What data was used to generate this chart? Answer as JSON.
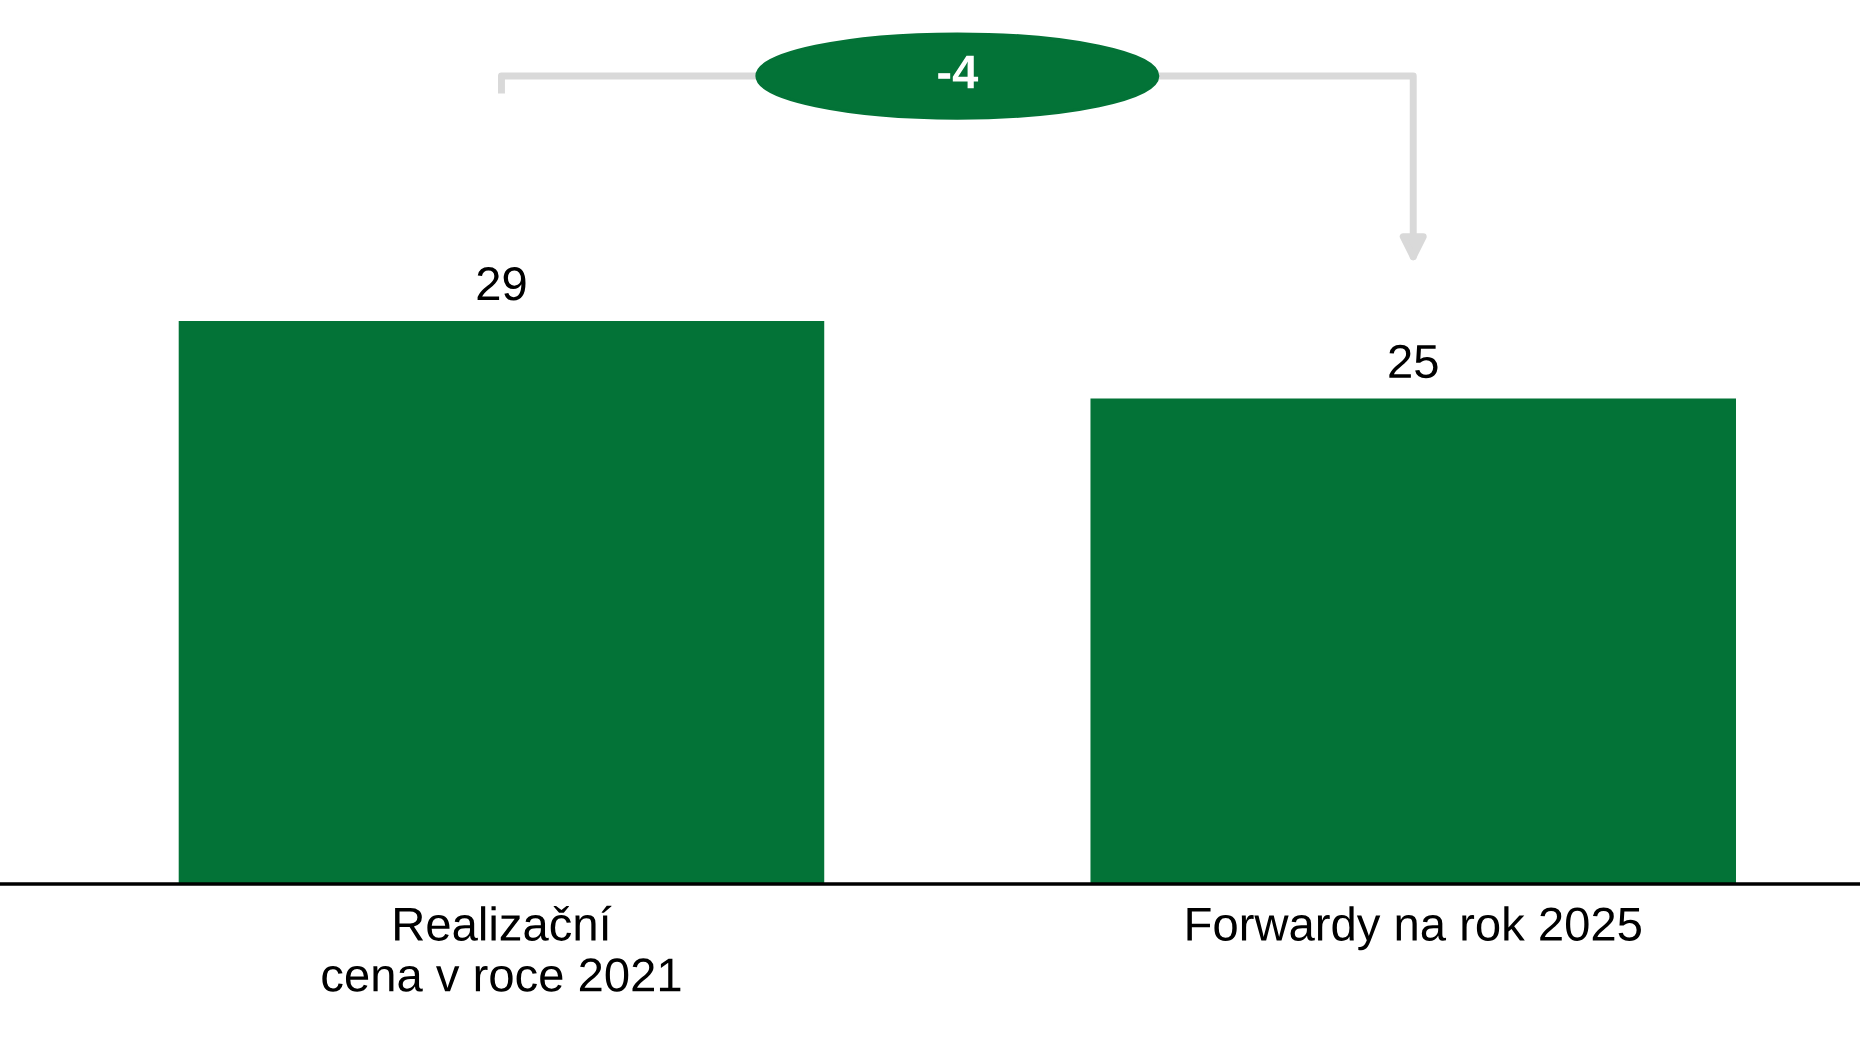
{
  "chart_data": {
    "type": "bar",
    "categories": [
      "Realizační\ncena v roce 2021",
      "Forwardy na rok 2025"
    ],
    "values": [
      29,
      25
    ],
    "color": "#037337",
    "data_labels": true,
    "annotations": [
      "-4"
    ]
  }
}
